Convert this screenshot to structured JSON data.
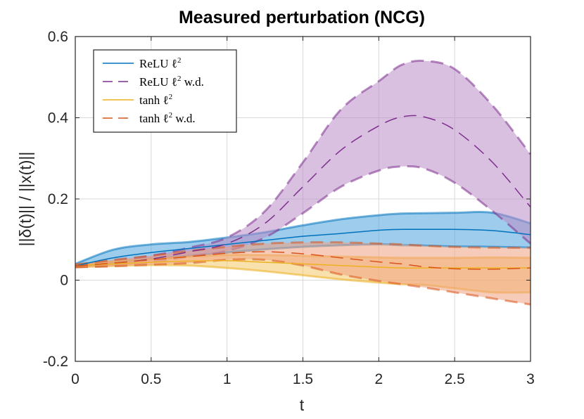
{
  "chart_data": {
    "type": "line",
    "title": "Measured perturbation (NCG)",
    "xlabel": "t",
    "ylabel": "||δ(t)|| / ||x(t)||",
    "xlim": [
      0,
      3
    ],
    "ylim": [
      -0.2,
      0.6
    ],
    "xticks": [
      0,
      0.5,
      1,
      1.5,
      2,
      2.5,
      3
    ],
    "xtick_labels": [
      "0",
      "0.5",
      "1",
      "1.5",
      "2",
      "2.5",
      "3"
    ],
    "yticks": [
      -0.2,
      0,
      0.2,
      0.4,
      0.6
    ],
    "ytick_labels": [
      "-0.2",
      "0",
      "0.2",
      "0.4",
      "0.6"
    ],
    "grid": true,
    "legend_position": "top-left",
    "x": [
      0,
      0.25,
      0.5,
      0.75,
      1.0,
      1.25,
      1.5,
      1.75,
      2.0,
      2.15,
      2.3,
      2.5,
      2.75,
      3.0
    ],
    "series": [
      {
        "name": "ReLU ℓ2",
        "legend": {
          "base": "ReLU ℓ",
          "sup": "2",
          "suffix": ""
        },
        "color": "#0072BD",
        "fill": "#4da3dd",
        "style": "solid",
        "mean": [
          0.035,
          0.055,
          0.068,
          0.078,
          0.088,
          0.098,
          0.108,
          0.115,
          0.123,
          0.125,
          0.125,
          0.125,
          0.122,
          0.112
        ],
        "upper": [
          0.04,
          0.075,
          0.088,
          0.094,
          0.105,
          0.118,
          0.135,
          0.15,
          0.16,
          0.164,
          0.165,
          0.166,
          0.166,
          0.14
        ],
        "lower": [
          0.032,
          0.042,
          0.052,
          0.06,
          0.068,
          0.076,
          0.082,
          0.086,
          0.088,
          0.086,
          0.085,
          0.083,
          0.082,
          0.08
        ]
      },
      {
        "name": "ReLU ℓ2 w.d.",
        "legend": {
          "base": "ReLU ℓ",
          "sup": "2",
          "suffix": " w.d."
        },
        "color": "#7E2F8E",
        "fill": "#b98cc6",
        "style": "dashed",
        "mean": [
          0.035,
          0.042,
          0.052,
          0.07,
          0.09,
          0.14,
          0.23,
          0.32,
          0.38,
          0.402,
          0.402,
          0.37,
          0.29,
          0.18
        ],
        "upper": [
          0.038,
          0.048,
          0.06,
          0.08,
          0.105,
          0.17,
          0.29,
          0.42,
          0.49,
          0.53,
          0.54,
          0.52,
          0.43,
          0.31
        ],
        "lower": [
          0.032,
          0.036,
          0.044,
          0.058,
          0.072,
          0.105,
          0.165,
          0.23,
          0.27,
          0.28,
          0.275,
          0.24,
          0.17,
          0.09
        ]
      },
      {
        "name": "tanh ℓ2",
        "legend": {
          "base": "tanh ℓ",
          "sup": "2",
          "suffix": ""
        },
        "color": "#EDB120",
        "fill": "#f2c86a",
        "style": "solid",
        "mean": [
          0.035,
          0.04,
          0.044,
          0.047,
          0.048,
          0.044,
          0.04,
          0.036,
          0.032,
          0.03,
          0.03,
          0.03,
          0.03,
          0.03
        ],
        "upper": [
          0.038,
          0.046,
          0.052,
          0.058,
          0.062,
          0.062,
          0.06,
          0.058,
          0.056,
          0.055,
          0.055,
          0.055,
          0.056,
          0.055
        ],
        "lower": [
          0.032,
          0.035,
          0.037,
          0.036,
          0.03,
          0.022,
          0.012,
          0.002,
          -0.006,
          -0.01,
          -0.012,
          -0.02,
          -0.03,
          -0.03
        ]
      },
      {
        "name": "tanh ℓ2 w.d.",
        "legend": {
          "base": "tanh ℓ",
          "sup": "2",
          "suffix": " w.d."
        },
        "color": "#D95319",
        "fill": "#f0a080",
        "style": "dashed",
        "mean": [
          0.035,
          0.042,
          0.05,
          0.058,
          0.066,
          0.07,
          0.065,
          0.055,
          0.045,
          0.04,
          0.033,
          0.028,
          0.027,
          0.03
        ],
        "upper": [
          0.038,
          0.05,
          0.06,
          0.072,
          0.082,
          0.09,
          0.093,
          0.093,
          0.09,
          0.088,
          0.085,
          0.082,
          0.08,
          0.08
        ],
        "lower": [
          0.032,
          0.034,
          0.038,
          0.042,
          0.05,
          0.05,
          0.036,
          0.014,
          -0.002,
          -0.01,
          -0.018,
          -0.03,
          -0.045,
          -0.06
        ]
      }
    ]
  }
}
